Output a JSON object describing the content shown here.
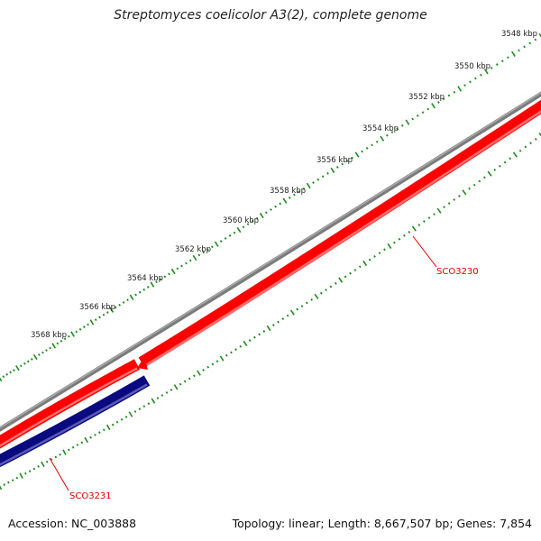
{
  "title": "Streptomyces coelicolor A3(2), complete genome",
  "footer": {
    "accession": "Accession: NC_003888",
    "summary": "Topology: linear; Length: 8,667,507 bp; Genes: 7,854"
  },
  "scale_labels": [
    "3548 kbp",
    "3550 kbp",
    "3552 kbp",
    "3554 kbp",
    "3556 kbp",
    "3558 kbp",
    "3560 kbp",
    "3562 kbp",
    "3564 kbp",
    "3566 kbp",
    "3568 kbp"
  ],
  "genes": [
    {
      "label": "SCO3230",
      "color": "#ff0000"
    },
    {
      "label": "SCO3231",
      "color": "#000080"
    }
  ],
  "colors": {
    "backbone": "#808080",
    "forward_gene": "#ff0000",
    "reverse_gene": "#0a0a80",
    "tick": "#1f8a1f",
    "gene_label": "#e00000",
    "scale_label": "#222222"
  }
}
